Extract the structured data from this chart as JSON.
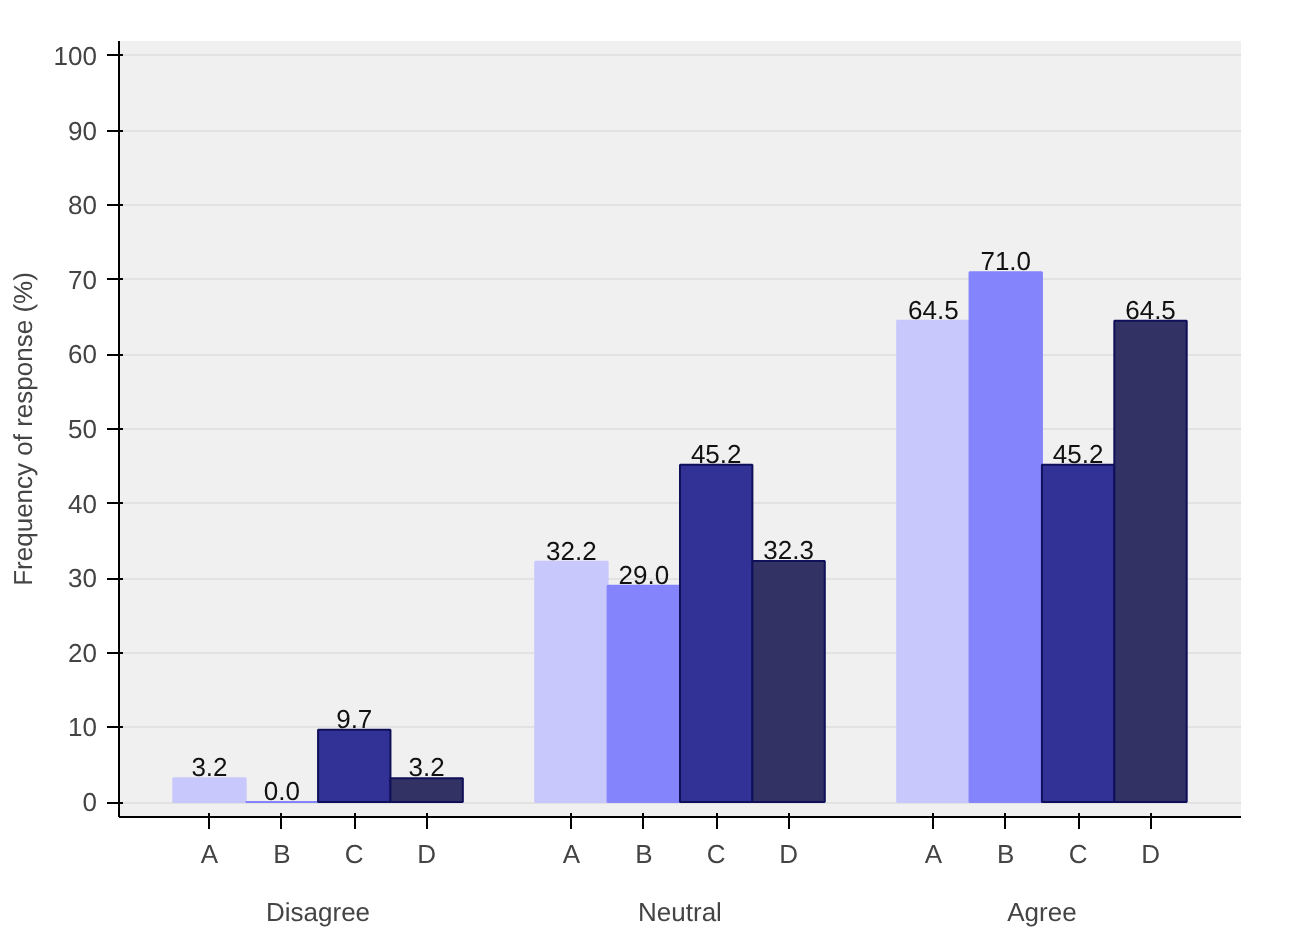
{
  "chart_data": {
    "type": "bar",
    "categories": [
      "Disagree",
      "Neutral",
      "Agree"
    ],
    "ylabel": "Frequency of response (%)",
    "ylim": [
      -2,
      102
    ],
    "yticks": [
      0,
      10,
      20,
      30,
      40,
      50,
      60,
      70,
      80,
      90,
      100
    ],
    "grid": "y",
    "series": [
      {
        "name": "A",
        "color": "#c8c8fc",
        "values": [
          3.2,
          32.2,
          64.5
        ],
        "value_labels": [
          "3.2",
          "32.2",
          "64.5"
        ]
      },
      {
        "name": "B",
        "color": "#8484fc",
        "values": [
          0.0,
          29.0,
          71.0
        ],
        "value_labels": [
          "0.0",
          "29.0",
          "71.0"
        ]
      },
      {
        "name": "C",
        "color": "#323296",
        "values": [
          9.7,
          45.2,
          45.2
        ],
        "value_labels": [
          "9.7",
          "45.2",
          "45.2"
        ]
      },
      {
        "name": "D",
        "color": "#323264",
        "values": [
          3.2,
          32.3,
          64.5
        ],
        "value_labels": [
          "3.2",
          "32.3",
          "64.5"
        ]
      }
    ]
  }
}
